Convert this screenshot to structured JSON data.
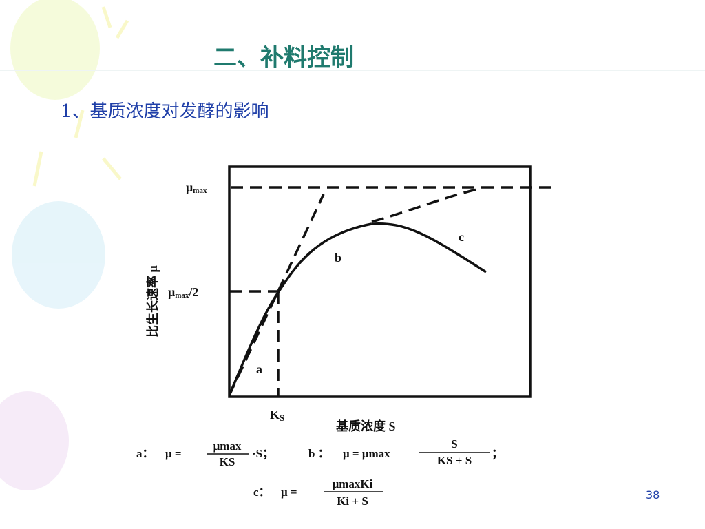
{
  "header": {
    "title": "二、补料控制",
    "subtitle": "1、基质浓度对发酵的影响"
  },
  "figure": {
    "y_axis_label": "比生长速率 μ",
    "x_axis_label": "基质浓度 S",
    "mu_max": {
      "symbol": "μ",
      "subscript": "max"
    },
    "mu_half": {
      "symbol": "μ",
      "subscript": "max",
      "suffix": "/2"
    },
    "ks": {
      "symbol": "K",
      "subscript": "S"
    },
    "curve_labels": [
      "a",
      "b",
      "c"
    ]
  },
  "formulas": [
    {
      "label": "a：",
      "lhs": "μ =",
      "numerator": "μmax",
      "denominator": "KS",
      "suffix": "·S；"
    },
    {
      "label": "b ：",
      "lhs": "μ = μmax",
      "numerator": "S",
      "denominator": "KS + S",
      "suffix": "；"
    },
    {
      "label": "c：",
      "lhs": "μ =",
      "numerator": "μmaxKi",
      "denominator": "Ki + S",
      "suffix": ""
    }
  ],
  "page_number": "38"
}
